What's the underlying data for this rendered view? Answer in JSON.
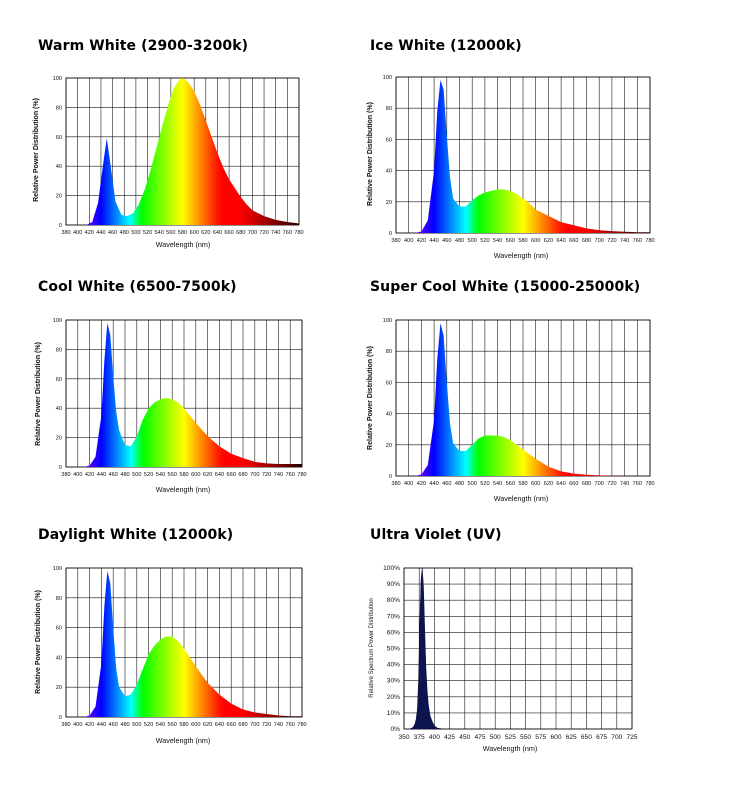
{
  "chart_data": [
    {
      "type": "area",
      "title": "Warm White (2900-3200k)",
      "xlabel": "Wavelength (nm)",
      "ylabel": "Relative Power Distribution (%)",
      "xlim": [
        380,
        780
      ],
      "ylim": [
        0,
        100
      ],
      "x_ticks": [
        "380",
        "400",
        "420",
        "440",
        "460",
        "480",
        "500",
        "520",
        "540",
        "560",
        "580",
        "600",
        "620",
        "640",
        "660",
        "680",
        "700",
        "720",
        "740",
        "760",
        "780"
      ],
      "y_ticks": [
        "0",
        "20",
        "40",
        "60",
        "80",
        "100"
      ],
      "fill": "spectrum",
      "grid": true,
      "series": [
        {
          "x": [
            380,
            400,
            415,
            425,
            435,
            445,
            450,
            455,
            465,
            475,
            485,
            495,
            505,
            515,
            525,
            535,
            545,
            555,
            565,
            575,
            580,
            585,
            590,
            600,
            610,
            620,
            630,
            640,
            650,
            660,
            670,
            680,
            690,
            700,
            720,
            740,
            760,
            780
          ],
          "y": [
            0,
            0,
            0,
            2,
            15,
            45,
            59,
            45,
            16,
            7,
            6,
            8,
            14,
            24,
            37,
            52,
            67,
            81,
            93,
            99,
            100,
            99,
            97,
            91,
            82,
            71,
            60,
            49,
            39,
            31,
            25,
            19,
            14,
            10,
            6,
            3.5,
            2,
            1
          ]
        }
      ]
    },
    {
      "type": "area",
      "title": "Ice White (12000k)",
      "xlabel": "Wavelength (nm)",
      "ylabel": "Relative Power Distribution (%)",
      "xlim": [
        380,
        780
      ],
      "ylim": [
        0,
        100
      ],
      "x_ticks": [
        "380",
        "400",
        "420",
        "440",
        "460",
        "480",
        "500",
        "520",
        "540",
        "560",
        "580",
        "600",
        "620",
        "640",
        "660",
        "680",
        "700",
        "720",
        "740",
        "760",
        "780"
      ],
      "y_ticks": [
        "0",
        "20",
        "40",
        "60",
        "80",
        "100"
      ],
      "fill": "spectrum",
      "grid": true,
      "series": [
        {
          "x": [
            380,
            400,
            410,
            420,
            430,
            440,
            445,
            450,
            455,
            460,
            465,
            470,
            480,
            490,
            500,
            510,
            520,
            530,
            540,
            550,
            560,
            570,
            580,
            590,
            600,
            620,
            640,
            660,
            680,
            700,
            720,
            740,
            760,
            780
          ],
          "y": [
            0,
            0,
            0,
            1,
            8,
            40,
            78,
            98,
            92,
            62,
            36,
            22,
            17,
            17,
            21,
            24,
            26,
            27,
            28,
            28,
            27,
            25,
            22,
            19,
            15,
            11,
            7,
            5,
            3,
            1.8,
            1.2,
            0.8,
            0.5,
            0.5
          ]
        }
      ]
    },
    {
      "type": "area",
      "title": "Cool White (6500-7500k)",
      "xlabel": "Wavelength (nm)",
      "ylabel": "Relative Power Distribution (%)",
      "xlim": [
        380,
        780
      ],
      "ylim": [
        0,
        100
      ],
      "x_ticks": [
        "380",
        "400",
        "420",
        "440",
        "460",
        "480",
        "500",
        "520",
        "540",
        "560",
        "580",
        "600",
        "620",
        "640",
        "660",
        "680",
        "700",
        "720",
        "740",
        "760",
        "780"
      ],
      "y_ticks": [
        "0",
        "20",
        "40",
        "60",
        "80",
        "100"
      ],
      "fill": "spectrum",
      "grid": true,
      "series": [
        {
          "x": [
            380,
            400,
            410,
            420,
            430,
            440,
            445,
            450,
            455,
            460,
            465,
            470,
            480,
            490,
            500,
            510,
            520,
            530,
            540,
            550,
            560,
            570,
            580,
            590,
            600,
            620,
            640,
            660,
            680,
            700,
            720,
            740,
            760,
            780
          ],
          "y": [
            0,
            0,
            0,
            1,
            7,
            35,
            72,
            98,
            90,
            62,
            38,
            25,
            15,
            14,
            21,
            32,
            40,
            44,
            46,
            47,
            46,
            44,
            40,
            35,
            30,
            21,
            14,
            9,
            6,
            3.5,
            2.5,
            2,
            2,
            2
          ]
        }
      ]
    },
    {
      "type": "area",
      "title": "Super Cool White (15000-25000k)",
      "xlabel": "Wavelength (nm)",
      "ylabel": "Relative Power Distribution (%)",
      "xlim": [
        380,
        780
      ],
      "ylim": [
        0,
        100
      ],
      "x_ticks": [
        "380",
        "400",
        "420",
        "440",
        "460",
        "480",
        "500",
        "520",
        "540",
        "560",
        "580",
        "600",
        "620",
        "640",
        "660",
        "680",
        "700",
        "720",
        "740",
        "760",
        "780"
      ],
      "y_ticks": [
        "0",
        "20",
        "40",
        "60",
        "80",
        "100"
      ],
      "fill": "spectrum",
      "grid": true,
      "series": [
        {
          "x": [
            380,
            400,
            410,
            420,
            430,
            440,
            445,
            450,
            455,
            460,
            465,
            470,
            480,
            490,
            500,
            510,
            520,
            530,
            540,
            550,
            560,
            570,
            580,
            590,
            600,
            620,
            640,
            660,
            680,
            700,
            720,
            740,
            760,
            780
          ],
          "y": [
            0,
            0,
            0,
            1,
            7,
            36,
            75,
            98,
            90,
            60,
            34,
            21,
            16,
            16,
            20,
            24,
            26,
            26,
            26,
            25,
            23,
            20,
            17,
            14,
            11,
            6,
            3,
            1.5,
            0.8,
            0.4,
            0.2,
            0.1,
            0,
            0
          ]
        }
      ]
    },
    {
      "type": "area",
      "title": "Daylight White (12000k)",
      "xlabel": "Wavelength (nm)",
      "ylabel": "Relative Power Distribution (%)",
      "xlim": [
        380,
        780
      ],
      "ylim": [
        0,
        100
      ],
      "x_ticks": [
        "380",
        "400",
        "420",
        "440",
        "460",
        "480",
        "500",
        "520",
        "540",
        "560",
        "580",
        "600",
        "620",
        "640",
        "660",
        "680",
        "700",
        "720",
        "740",
        "760",
        "780"
      ],
      "y_ticks": [
        "0",
        "20",
        "40",
        "60",
        "80",
        "100"
      ],
      "fill": "spectrum",
      "grid": true,
      "series": [
        {
          "x": [
            380,
            400,
            410,
            420,
            430,
            440,
            445,
            450,
            455,
            460,
            465,
            470,
            480,
            490,
            500,
            510,
            520,
            530,
            540,
            550,
            560,
            570,
            580,
            590,
            600,
            620,
            640,
            660,
            680,
            700,
            720,
            740,
            760,
            780
          ],
          "y": [
            0,
            0,
            0,
            1,
            7,
            36,
            74,
            98,
            90,
            60,
            33,
            20,
            14,
            15,
            22,
            32,
            42,
            48,
            52,
            54,
            54,
            51,
            46,
            40,
            34,
            23,
            15,
            9,
            5,
            3,
            2,
            1,
            0.5,
            0.5
          ]
        }
      ]
    },
    {
      "type": "area",
      "title": "Ultra Violet (UV)",
      "xlabel": "Wavelength (nm)",
      "ylabel": "Relative Spectrum Power Distribution",
      "xlim": [
        350,
        725
      ],
      "ylim": [
        0,
        100
      ],
      "x_ticks": [
        "350",
        "375",
        "400",
        "425",
        "450",
        "475",
        "500",
        "525",
        "550",
        "575",
        "600",
        "625",
        "650",
        "675",
        "700",
        "725"
      ],
      "y_ticks": [
        "0%",
        "10%",
        "20%",
        "30%",
        "40%",
        "50%",
        "60%",
        "70%",
        "80%",
        "90%",
        "100%"
      ],
      "fill": "#0d1550",
      "grid": true,
      "series": [
        {
          "x": [
            360,
            365,
            368,
            370,
            372,
            374,
            376,
            378,
            380,
            382,
            384,
            386,
            388,
            390,
            393,
            397,
            400,
            405,
            415
          ],
          "y": [
            0,
            1,
            3,
            6,
            12,
            30,
            65,
            92,
            100,
            88,
            62,
            38,
            24,
            15,
            8,
            4,
            2,
            0.5,
            0
          ]
        }
      ]
    }
  ]
}
